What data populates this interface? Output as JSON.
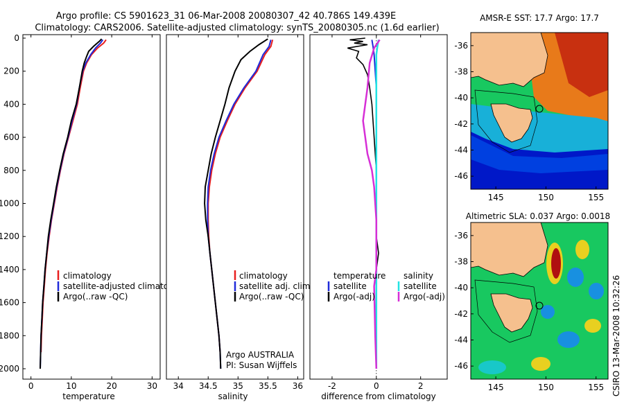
{
  "title_line1": "Argo profile: CS 5901623_31 06-Mar-2008 20080307_42 40.786S 149.439E",
  "title_line2": "Climatology: CARS2006. Satellite-adjusted climatology: synTS_20080305.nc (1.6d earlier)",
  "side_stamp": "CSIRO 13-Mar-2008 10:32:26",
  "colors": {
    "climatology": "#e81e1e",
    "satellite": "#1f2ad9",
    "argo": "#000000",
    "sal_satellite": "#22e3e3",
    "sal_argo": "#d62fd6",
    "land": "#f5c08e"
  },
  "chart_data": [
    {
      "type": "line",
      "xlabel": "temperature",
      "ylabel": "",
      "xlim": [
        -2,
        32
      ],
      "ylim": [
        2050,
        0
      ],
      "xticks": [
        "0",
        "10",
        "20",
        "30"
      ],
      "yticks": [
        "0",
        "200",
        "400",
        "600",
        "800",
        "1000",
        "1200",
        "1400",
        "1600",
        "1800",
        "2000"
      ],
      "legend": [
        "climatology",
        "satellite-adjusted climatology",
        "Argo(..raw -QC)"
      ],
      "series": [
        {
          "name": "climatology",
          "points": [
            [
              18.6,
              10
            ],
            [
              18.0,
              30
            ],
            [
              16.5,
              60
            ],
            [
              15.0,
              100
            ],
            [
              13.8,
              150
            ],
            [
              13.0,
              200
            ],
            [
              12.2,
              300
            ],
            [
              11.5,
              400
            ],
            [
              10.4,
              500
            ],
            [
              9.3,
              600
            ],
            [
              8.2,
              700
            ],
            [
              7.3,
              800
            ],
            [
              6.5,
              900
            ],
            [
              5.8,
              1000
            ],
            [
              5.1,
              1100
            ],
            [
              4.5,
              1200
            ],
            [
              4.0,
              1300
            ],
            [
              3.6,
              1400
            ],
            [
              3.3,
              1500
            ],
            [
              3.0,
              1600
            ],
            [
              2.8,
              1700
            ],
            [
              2.6,
              1800
            ],
            [
              2.5,
              1900
            ]
          ]
        },
        {
          "name": "satellite-adjusted climatology",
          "points": [
            [
              17.8,
              10
            ],
            [
              17.2,
              30
            ],
            [
              16.0,
              60
            ],
            [
              14.8,
              100
            ],
            [
              13.6,
              150
            ],
            [
              12.8,
              200
            ],
            [
              12.0,
              300
            ],
            [
              11.3,
              400
            ],
            [
              10.2,
              500
            ],
            [
              9.2,
              600
            ],
            [
              8.1,
              700
            ],
            [
              7.2,
              800
            ],
            [
              6.4,
              900
            ],
            [
              5.7,
              1000
            ],
            [
              5.0,
              1100
            ],
            [
              4.4,
              1200
            ],
            [
              3.9,
              1300
            ],
            [
              3.5,
              1400
            ],
            [
              3.2,
              1500
            ],
            [
              2.9,
              1600
            ],
            [
              2.7,
              1700
            ],
            [
              2.5,
              1800
            ],
            [
              2.4,
              1900
            ],
            [
              2.3,
              2000
            ]
          ]
        },
        {
          "name": "Argo(..raw -QC)",
          "points": [
            [
              17.5,
              5
            ],
            [
              16.9,
              20
            ],
            [
              15.5,
              50
            ],
            [
              14.3,
              80
            ],
            [
              13.8,
              110
            ],
            [
              13.2,
              150
            ],
            [
              12.7,
              200
            ],
            [
              12.0,
              300
            ],
            [
              11.2,
              400
            ],
            [
              10.0,
              500
            ],
            [
              9.1,
              600
            ],
            [
              8.0,
              700
            ],
            [
              7.1,
              800
            ],
            [
              6.3,
              900
            ],
            [
              5.6,
              1000
            ],
            [
              4.9,
              1100
            ],
            [
              4.3,
              1200
            ],
            [
              3.9,
              1300
            ],
            [
              3.5,
              1400
            ],
            [
              3.2,
              1500
            ],
            [
              2.9,
              1600
            ],
            [
              2.7,
              1700
            ],
            [
              2.5,
              1800
            ],
            [
              2.4,
              1900
            ],
            [
              2.3,
              2000
            ]
          ]
        }
      ]
    },
    {
      "type": "line",
      "xlabel": "salinity",
      "xlim": [
        33.8,
        36.1
      ],
      "ylim": [
        2050,
        0
      ],
      "xticks": [
        "34",
        "34.5",
        "35",
        "35.5",
        "36"
      ],
      "legend": [
        "climatology",
        "satellite adj. clim.",
        "Argo(..raw -QC)"
      ],
      "annotation": [
        "Argo AUSTRALIA",
        "PI: Susan Wijffels"
      ],
      "series": [
        {
          "name": "climatology",
          "points": [
            [
              35.58,
              10
            ],
            [
              35.55,
              50
            ],
            [
              35.45,
              100
            ],
            [
              35.32,
              200
            ],
            [
              35.12,
              300
            ],
            [
              34.95,
              400
            ],
            [
              34.82,
              500
            ],
            [
              34.7,
              600
            ],
            [
              34.62,
              700
            ],
            [
              34.56,
              800
            ],
            [
              34.52,
              900
            ],
            [
              34.5,
              1000
            ],
            [
              34.5,
              1100
            ],
            [
              34.51,
              1200
            ],
            [
              34.53,
              1300
            ],
            [
              34.56,
              1400
            ],
            [
              34.59,
              1500
            ],
            [
              34.62,
              1600
            ],
            [
              34.65,
              1700
            ],
            [
              34.68,
              1800
            ],
            [
              34.7,
              1900
            ]
          ]
        },
        {
          "name": "satellite adj. clim.",
          "points": [
            [
              35.55,
              10
            ],
            [
              35.52,
              50
            ],
            [
              35.42,
              100
            ],
            [
              35.3,
              200
            ],
            [
              35.1,
              300
            ],
            [
              34.93,
              400
            ],
            [
              34.8,
              500
            ],
            [
              34.68,
              600
            ],
            [
              34.6,
              700
            ],
            [
              34.54,
              800
            ],
            [
              34.5,
              900
            ],
            [
              34.49,
              1000
            ],
            [
              34.49,
              1100
            ],
            [
              34.5,
              1200
            ],
            [
              34.53,
              1300
            ],
            [
              34.56,
              1400
            ],
            [
              34.59,
              1500
            ],
            [
              34.62,
              1600
            ],
            [
              34.65,
              1700
            ],
            [
              34.68,
              1800
            ],
            [
              34.7,
              1900
            ],
            [
              34.71,
              2000
            ]
          ]
        },
        {
          "name": "Argo(..raw -QC)",
          "points": [
            [
              35.5,
              5
            ],
            [
              35.35,
              40
            ],
            [
              35.2,
              80
            ],
            [
              35.05,
              130
            ],
            [
              34.95,
              200
            ],
            [
              34.85,
              300
            ],
            [
              34.78,
              400
            ],
            [
              34.7,
              500
            ],
            [
              34.62,
              600
            ],
            [
              34.55,
              700
            ],
            [
              34.5,
              800
            ],
            [
              34.45,
              900
            ],
            [
              34.44,
              1000
            ],
            [
              34.46,
              1100
            ],
            [
              34.5,
              1200
            ],
            [
              34.53,
              1300
            ],
            [
              34.56,
              1400
            ],
            [
              34.59,
              1500
            ],
            [
              34.62,
              1600
            ],
            [
              34.65,
              1700
            ],
            [
              34.68,
              1800
            ],
            [
              34.7,
              1900
            ],
            [
              34.71,
              2000
            ]
          ]
        }
      ]
    },
    {
      "type": "line",
      "xlabel": "difference from climatology",
      "xlim": [
        -3,
        3.2
      ],
      "ylim": [
        2050,
        0
      ],
      "xticks": [
        "-2",
        "0",
        "2"
      ],
      "legend_temperature": [
        "temperature",
        "satellite",
        "Argo(-adj)"
      ],
      "legend_salinity": [
        "salinity",
        "satellite",
        "Argo(-adj)"
      ],
      "series": [
        {
          "name": "temperature satellite",
          "points": [
            [
              -0.2,
              10
            ],
            [
              -0.15,
              50
            ],
            [
              -0.1,
              100
            ],
            [
              -0.05,
              200
            ],
            [
              0,
              300
            ],
            [
              0,
              2000
            ]
          ]
        },
        {
          "name": "temperature Argo(-adj)",
          "points": [
            [
              -0.5,
              0
            ],
            [
              -1.2,
              10
            ],
            [
              -0.6,
              20
            ],
            [
              -1.0,
              30
            ],
            [
              -0.4,
              40
            ],
            [
              -1.3,
              60
            ],
            [
              -0.8,
              80
            ],
            [
              -0.9,
              120
            ],
            [
              -0.6,
              160
            ],
            [
              -0.4,
              220
            ],
            [
              -0.3,
              300
            ],
            [
              -0.2,
              400
            ],
            [
              -0.1,
              600
            ],
            [
              0,
              800
            ],
            [
              0,
              1200
            ],
            [
              0.1,
              1300
            ],
            [
              0,
              1400
            ],
            [
              0,
              2000
            ]
          ]
        },
        {
          "name": "salinity satellite",
          "points": [
            [
              0.1,
              10
            ],
            [
              0.05,
              50
            ],
            [
              0,
              100
            ],
            [
              0,
              2000
            ]
          ]
        },
        {
          "name": "salinity Argo(-adj)",
          "points": [
            [
              0.15,
              10
            ],
            [
              -0.1,
              60
            ],
            [
              -0.3,
              150
            ],
            [
              -0.4,
              300
            ],
            [
              -0.5,
              400
            ],
            [
              -0.6,
              500
            ],
            [
              -0.5,
              600
            ],
            [
              -0.4,
              700
            ],
            [
              -0.2,
              800
            ],
            [
              -0.1,
              900
            ],
            [
              -0.05,
              1000
            ],
            [
              0,
              1100
            ],
            [
              0,
              1400
            ],
            [
              -0.1,
              1500
            ],
            [
              -0.05,
              1800
            ],
            [
              0,
              2000
            ]
          ]
        }
      ]
    },
    {
      "type": "heatmap",
      "title": "AMSR-E SST: 17.7 Argo: 17.7",
      "xlim": [
        142.5,
        156.2
      ],
      "ylim": [
        -47,
        -35
      ],
      "xticks": [
        "145",
        "150",
        "155"
      ],
      "yticks": [
        "-36",
        "-38",
        "-40",
        "-42",
        "-44",
        "-46"
      ]
    },
    {
      "type": "heatmap",
      "title": "Altimetric SLA: 0.037 Argo: 0.0018",
      "xlim": [
        142.5,
        156.2
      ],
      "ylim": [
        -47,
        -35
      ],
      "xticks": [
        "145",
        "150",
        "155"
      ],
      "yticks": [
        "-36",
        "-38",
        "-40",
        "-42",
        "-44",
        "-46"
      ]
    }
  ]
}
